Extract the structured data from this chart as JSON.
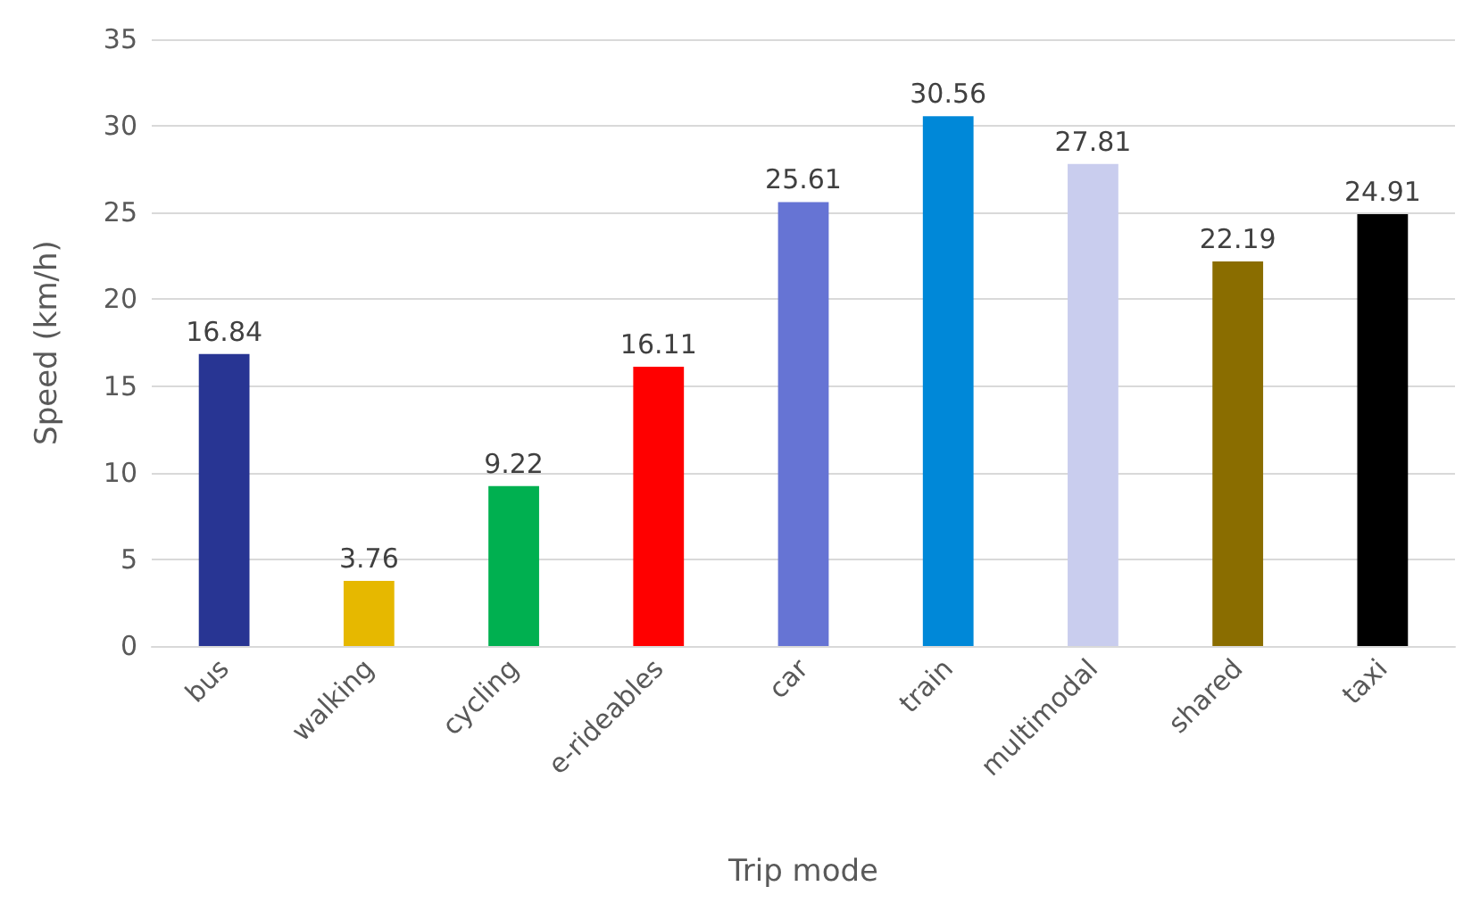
{
  "chart_data": {
    "type": "bar",
    "xlabel": "Trip mode",
    "ylabel": "Speed (km/h)",
    "categories": [
      "bus",
      "walking",
      "cycling",
      "e-rideables",
      "car",
      "train",
      "multimodal",
      "shared",
      "taxi"
    ],
    "values": [
      16.84,
      3.76,
      9.22,
      16.11,
      25.61,
      30.56,
      27.81,
      22.19,
      24.91
    ],
    "colors": [
      "#283593",
      "#e6b800",
      "#00b050",
      "#ff0000",
      "#6674d4",
      "#0088d8",
      "#c9cdee",
      "#8a6d00",
      "#000000"
    ],
    "ylim": [
      0,
      35
    ],
    "yticks": [
      0,
      5,
      10,
      15,
      20,
      25,
      30,
      35
    ],
    "grid": "y",
    "data_labels": true
  }
}
